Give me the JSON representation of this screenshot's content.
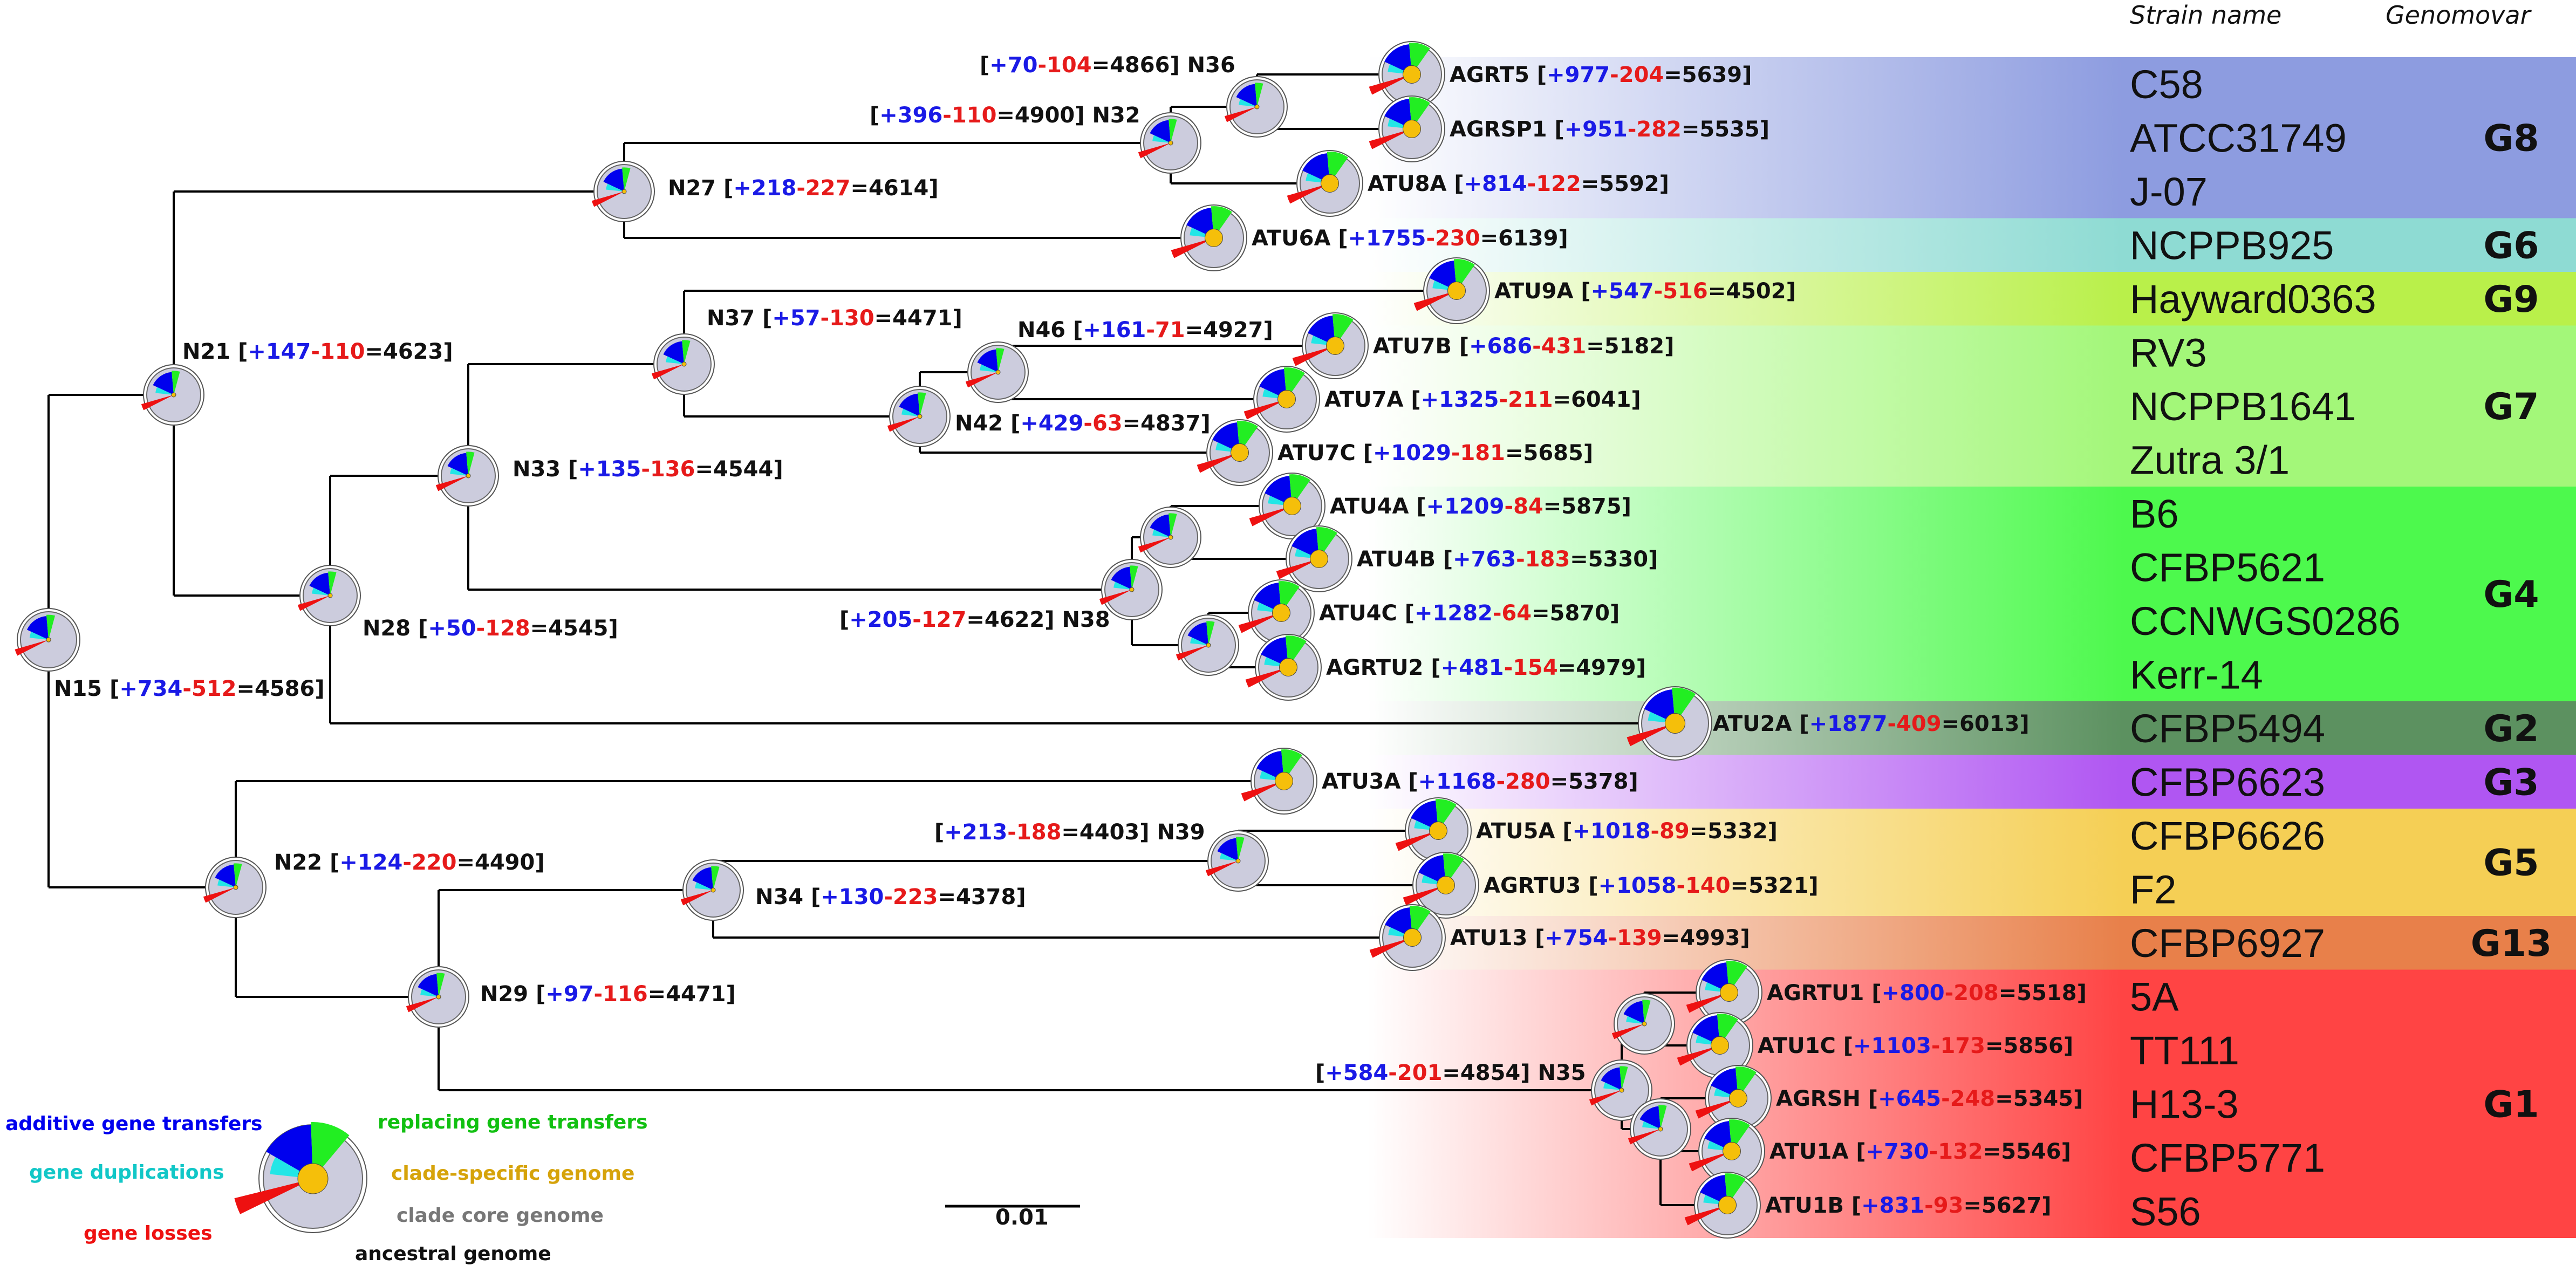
{
  "headers": {
    "strain": "Strain name",
    "genomovar": "Genomovar"
  },
  "colors": {
    "additive": "#0000ee",
    "replacing": "#22ee22",
    "duplication": "#22e6e6",
    "loss": "#ee1111",
    "clade_specific": "#f5bf0a",
    "core": "#ccccdd",
    "edge": "#000000"
  },
  "genomovars": [
    {
      "label": "G8",
      "color": "#8d9ce0",
      "strains": [
        "C58",
        "ATCC31749",
        "J-07"
      ]
    },
    {
      "label": "G6",
      "color": "#8edbd3",
      "strains": [
        "NCPPB925"
      ]
    },
    {
      "label": "G9",
      "color": "#b9f04a",
      "strains": [
        "Hayward0363"
      ]
    },
    {
      "label": "G7",
      "color": "#a3f779",
      "strains": [
        "RV3",
        "NCPPB1641",
        "Zutra 3/1"
      ]
    },
    {
      "label": "G4",
      "color": "#4df94d",
      "strains": [
        "B6",
        "CFBP5621",
        "CCNWGS0286",
        "Kerr-14"
      ]
    },
    {
      "label": "G2",
      "color": "#5c9160",
      "strains": [
        "CFBP5494"
      ]
    },
    {
      "label": "G3",
      "color": "#b056f2",
      "strains": [
        "CFBP6623"
      ]
    },
    {
      "label": "G5",
      "color": "#f5cf55",
      "strains": [
        "CFBP6626",
        "F2"
      ]
    },
    {
      "label": "G13",
      "color": "#e8804a",
      "strains": [
        "CFBP6927"
      ]
    },
    {
      "label": "G1",
      "color": "#ff4444",
      "strains": [
        "5A",
        "TT111",
        "H13-3",
        "CFBP5771",
        "S56"
      ]
    }
  ],
  "nodes": [
    {
      "id": "N15",
      "add": "+734",
      "loss": "-512",
      "total": "=4586"
    },
    {
      "id": "N21",
      "add": "+147",
      "loss": "-110",
      "total": "=4623"
    },
    {
      "id": "N27",
      "add": "+218",
      "loss": "-227",
      "total": "=4614"
    },
    {
      "id": "N32",
      "add": "+396",
      "loss": "-110",
      "total": "=4900"
    },
    {
      "id": "N36",
      "add": "+70",
      "loss": "-104",
      "total": "=4866"
    },
    {
      "id": "N28",
      "add": "+50",
      "loss": "-128",
      "total": "=4545"
    },
    {
      "id": "N33",
      "add": "+135",
      "loss": "-136",
      "total": "=4544"
    },
    {
      "id": "N37",
      "add": "+57",
      "loss": "-130",
      "total": "=4471"
    },
    {
      "id": "N42",
      "add": "+429",
      "loss": "-63",
      "total": "=4837"
    },
    {
      "id": "N46",
      "add": "+161",
      "loss": "-71",
      "total": "=4927"
    },
    {
      "id": "N38",
      "add": "+205",
      "loss": "-127",
      "total": "=4622"
    },
    {
      "id": "N22",
      "add": "+124",
      "loss": "-220",
      "total": "=4490"
    },
    {
      "id": "N34",
      "add": "+130",
      "loss": "-223",
      "total": "=4378"
    },
    {
      "id": "N39",
      "add": "+213",
      "loss": "-188",
      "total": "=4403"
    },
    {
      "id": "N29",
      "add": "+97",
      "loss": "-116",
      "total": "=4471"
    },
    {
      "id": "N35",
      "add": "+584",
      "loss": "-201",
      "total": "=4854"
    }
  ],
  "leaves": [
    {
      "id": "AGRT5",
      "add": "+977",
      "loss": "-204",
      "total": "=5639"
    },
    {
      "id": "AGRSP1",
      "add": "+951",
      "loss": "-282",
      "total": "=5535"
    },
    {
      "id": "ATU8A",
      "add": "+814",
      "loss": "-122",
      "total": "=5592"
    },
    {
      "id": "ATU6A",
      "add": "+1755",
      "loss": "-230",
      "total": "=6139"
    },
    {
      "id": "ATU9A",
      "add": "+547",
      "loss": "-516",
      "total": "=4502"
    },
    {
      "id": "ATU7B",
      "add": "+686",
      "loss": "-431",
      "total": "=5182"
    },
    {
      "id": "ATU7A",
      "add": "+1325",
      "loss": "-211",
      "total": "=6041"
    },
    {
      "id": "ATU7C",
      "add": "+1029",
      "loss": "-181",
      "total": "=5685"
    },
    {
      "id": "ATU4A",
      "add": "+1209",
      "loss": "-84",
      "total": "=5875"
    },
    {
      "id": "ATU4B",
      "add": "+763",
      "loss": "-183",
      "total": "=5330"
    },
    {
      "id": "ATU4C",
      "add": "+1282",
      "loss": "-64",
      "total": "=5870"
    },
    {
      "id": "AGRTU2",
      "add": "+481",
      "loss": "-154",
      "total": "=4979"
    },
    {
      "id": "ATU2A",
      "add": "+1877",
      "loss": "-409",
      "total": "=6013"
    },
    {
      "id": "ATU3A",
      "add": "+1168",
      "loss": "-280",
      "total": "=5378"
    },
    {
      "id": "ATU5A",
      "add": "+1018",
      "loss": "-89",
      "total": "=5332"
    },
    {
      "id": "AGRTU3",
      "add": "+1058",
      "loss": "-140",
      "total": "=5321"
    },
    {
      "id": "ATU13",
      "add": "+754",
      "loss": "-139",
      "total": "=4993"
    },
    {
      "id": "AGRTU1",
      "add": "+800",
      "loss": "-208",
      "total": "=5518"
    },
    {
      "id": "ATU1C",
      "add": "+1103",
      "loss": "-173",
      "total": "=5856"
    },
    {
      "id": "AGRSH",
      "add": "+645",
      "loss": "-248",
      "total": "=5345"
    },
    {
      "id": "ATU1A",
      "add": "+730",
      "loss": "-132",
      "total": "=5546"
    },
    {
      "id": "ATU1B",
      "add": "+831",
      "loss": "-93",
      "total": "=5627"
    }
  ],
  "legend": {
    "additive": "additive gene transfers",
    "replacing": "replacing gene transfers",
    "duplications": "gene duplications",
    "clade_specific": "clade-specific genome",
    "losses": "gene losses",
    "core": "clade core genome",
    "ancestral": "ancestral genome"
  },
  "scale": {
    "label": "0.01"
  }
}
